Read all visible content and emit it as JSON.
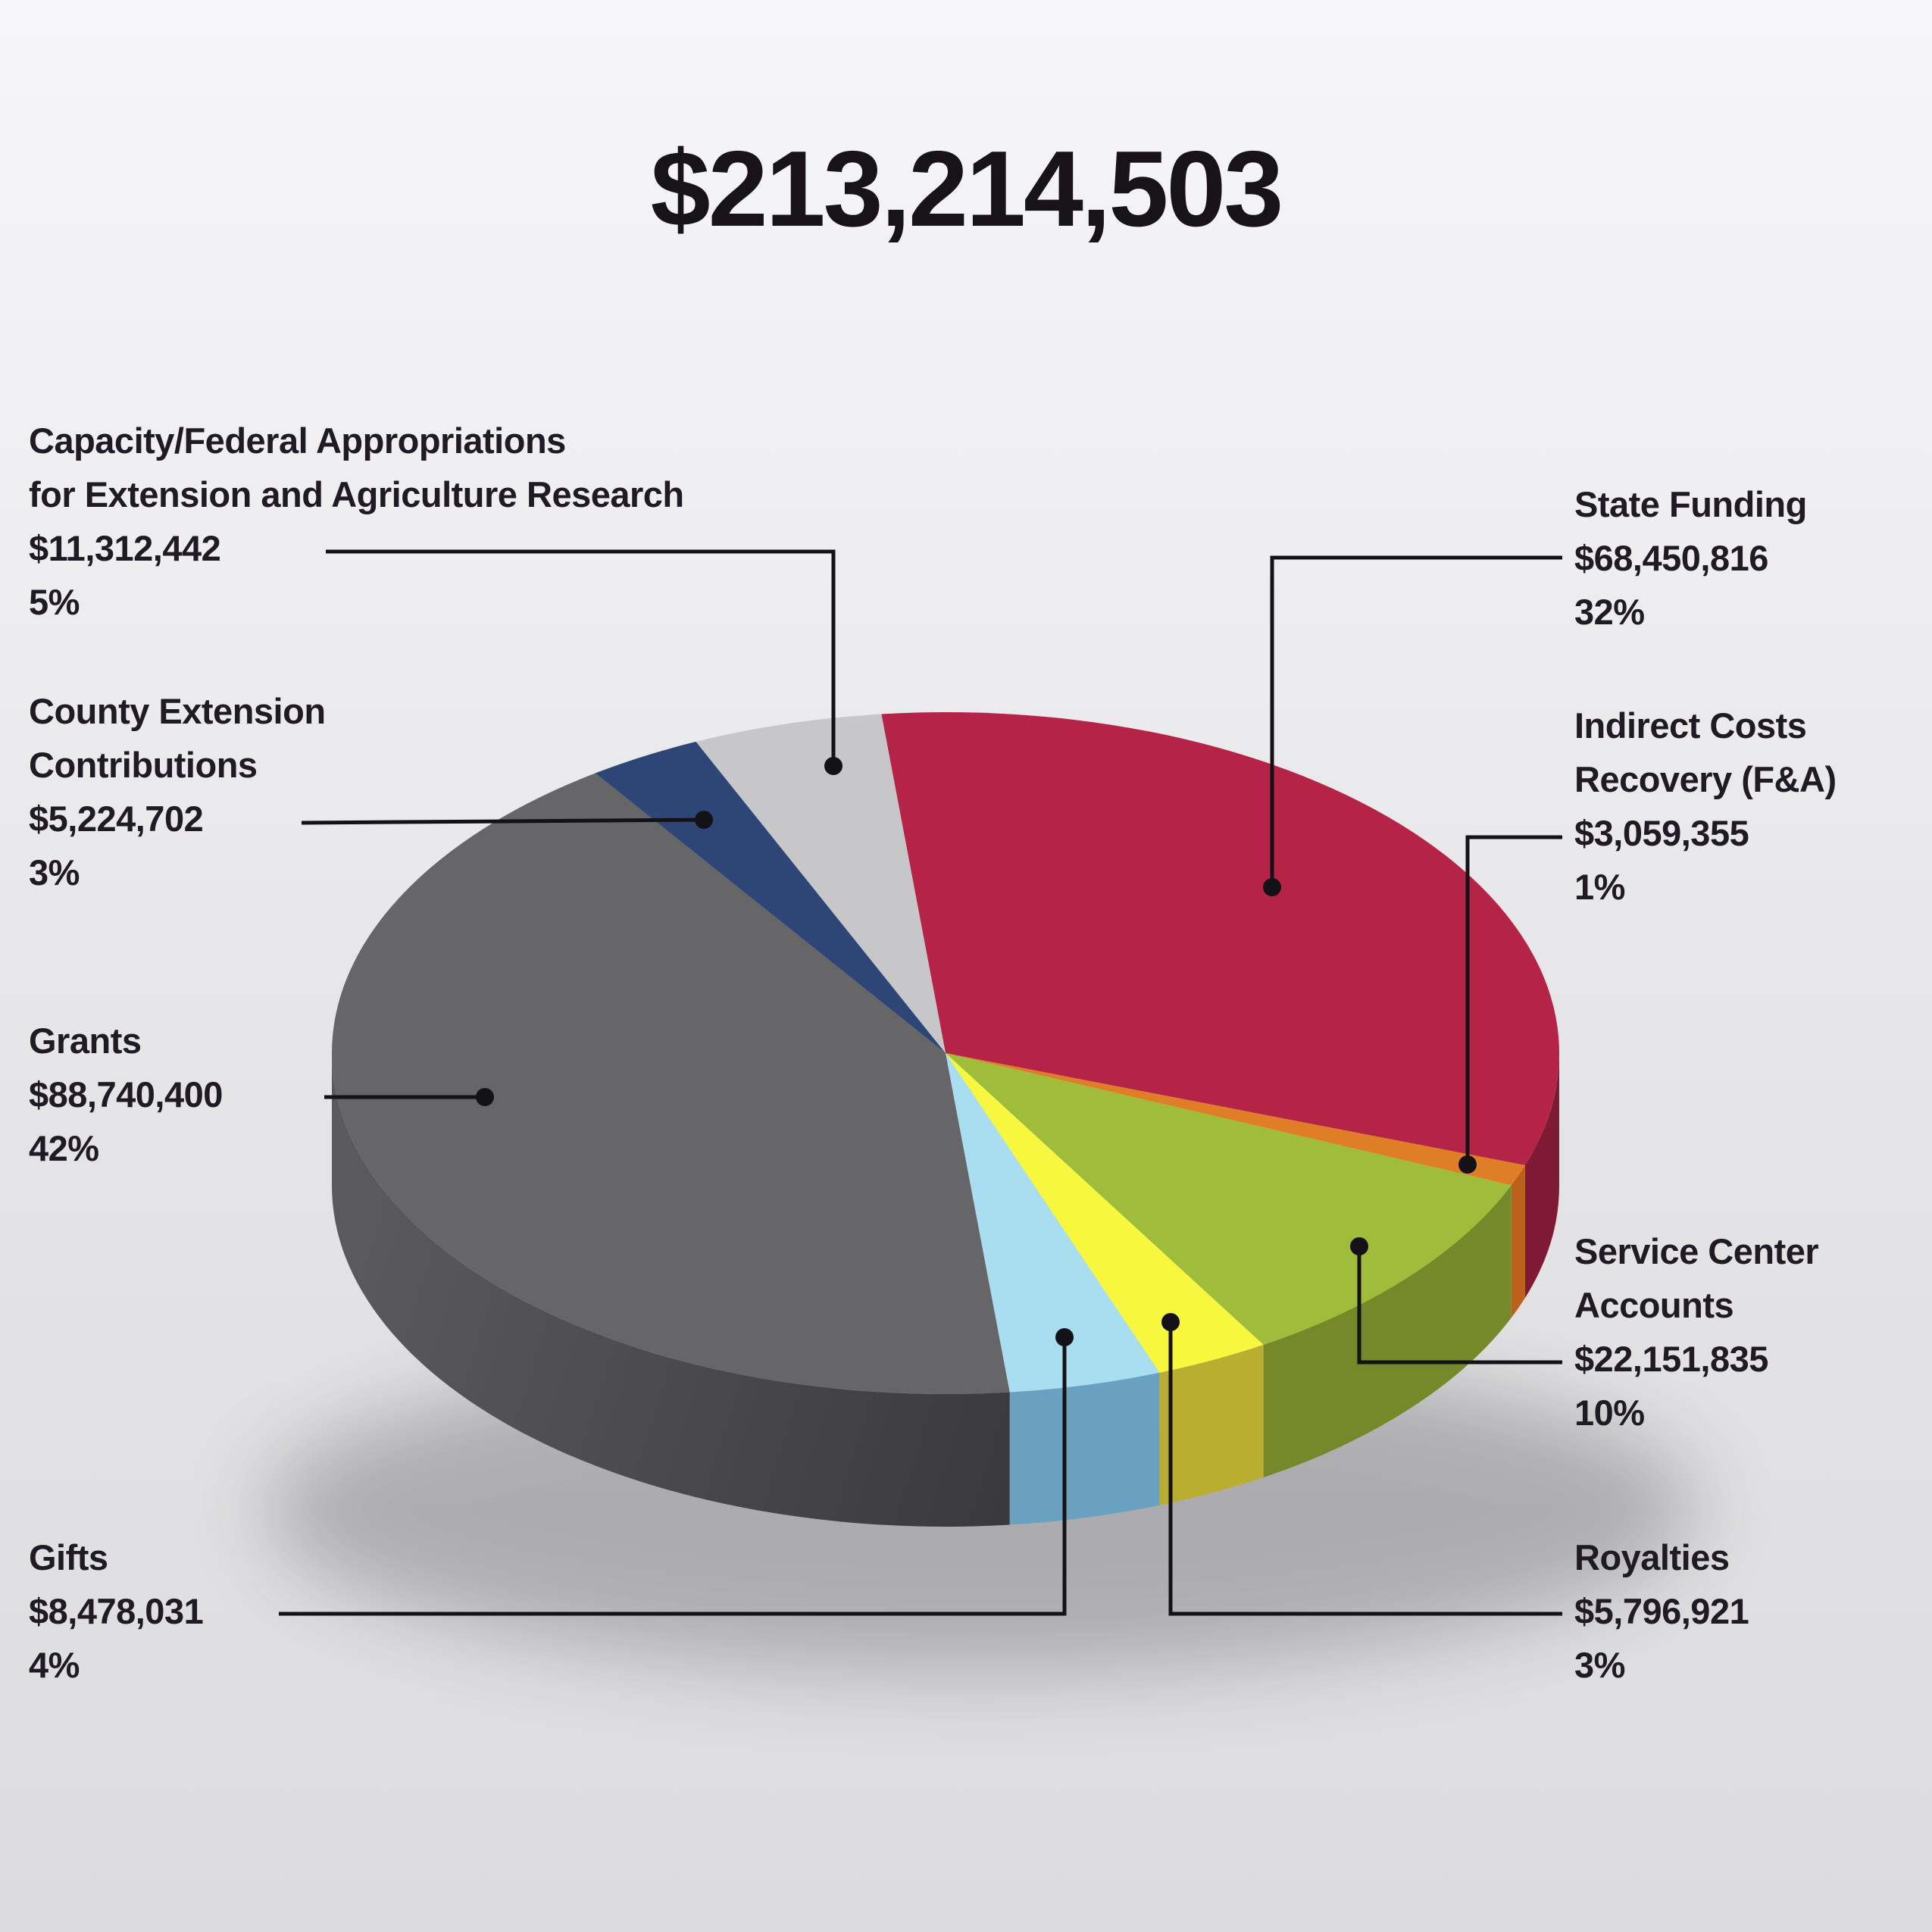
{
  "title": "$213,214,503",
  "chart_data": {
    "type": "pie",
    "style": "3d",
    "title": "$213,214,503",
    "total_value": 213214503,
    "start_angle_deg_from_12": -6,
    "direction": "clockwise",
    "legend_position": "callout-labels",
    "slices": [
      {
        "id": "state-funding",
        "label": "State Funding",
        "label_lines": [
          "State Funding"
        ],
        "amount": "$68,450,816",
        "value": 68450816,
        "percent": 32,
        "percent_label": "32%",
        "color": "#B52347",
        "side_color": "#7E1A34"
      },
      {
        "id": "indirect-costs",
        "label": "Indirect Costs Recovery (F&A)",
        "label_lines": [
          "Indirect Costs",
          "Recovery (F&A)"
        ],
        "amount": "$3,059,355",
        "value": 3059355,
        "percent": 1,
        "percent_label": "1%",
        "color": "#E07D27",
        "side_color": "#BC611C"
      },
      {
        "id": "service-center",
        "label": "Service Center Accounts",
        "label_lines": [
          "Service Center",
          "Accounts"
        ],
        "amount": "$22,151,835",
        "value": 22151835,
        "percent": 10,
        "percent_label": "10%",
        "color": "#A0BC3B",
        "side_color": "#75892B"
      },
      {
        "id": "royalties",
        "label": "Royalties",
        "label_lines": [
          "Royalties"
        ],
        "amount": "$5,796,921",
        "value": 5796921,
        "percent": 3,
        "percent_label": "3%",
        "color": "#F8F73F",
        "side_color": "#B9AE30"
      },
      {
        "id": "gifts",
        "label": "Gifts",
        "label_lines": [
          "Gifts"
        ],
        "amount": "$8,478,031",
        "value": 8478031,
        "percent": 4,
        "percent_label": "4%",
        "color": "#A9DDF0",
        "side_color": "#6BA1C0"
      },
      {
        "id": "grants",
        "label": "Grants",
        "label_lines": [
          "Grants"
        ],
        "amount": "$88,740,400",
        "value": 88740400,
        "percent": 42,
        "percent_label": "42%",
        "color": "#666668",
        "side_color": "#454547",
        "side_gradient": [
          "#5A5A5C",
          "#37373A"
        ]
      },
      {
        "id": "county-extension",
        "label": "County Extension Contributions",
        "label_lines": [
          "County Extension",
          "Contributions"
        ],
        "amount": "$5,224,702",
        "value": 5224702,
        "percent": 3,
        "percent_label": "3%",
        "color": "#2E4676",
        "side_color": "#21335A"
      },
      {
        "id": "capacity-federal",
        "label": "Capacity/Federal Appropriations for Extension and Agriculture Research",
        "label_lines": [
          "Capacity/Federal Appropriations",
          "for Extension and Agriculture Research"
        ],
        "amount": "$11,312,442",
        "value": 11312442,
        "percent": 5,
        "percent_label": "5%",
        "color": "#C7C7C9",
        "side_color": "#97979A"
      }
    ]
  },
  "colors": {
    "background_top": "#f6f6f8",
    "background_bottom": "#dcdcde",
    "text": "#201a24",
    "leader_line": "#141216"
  }
}
